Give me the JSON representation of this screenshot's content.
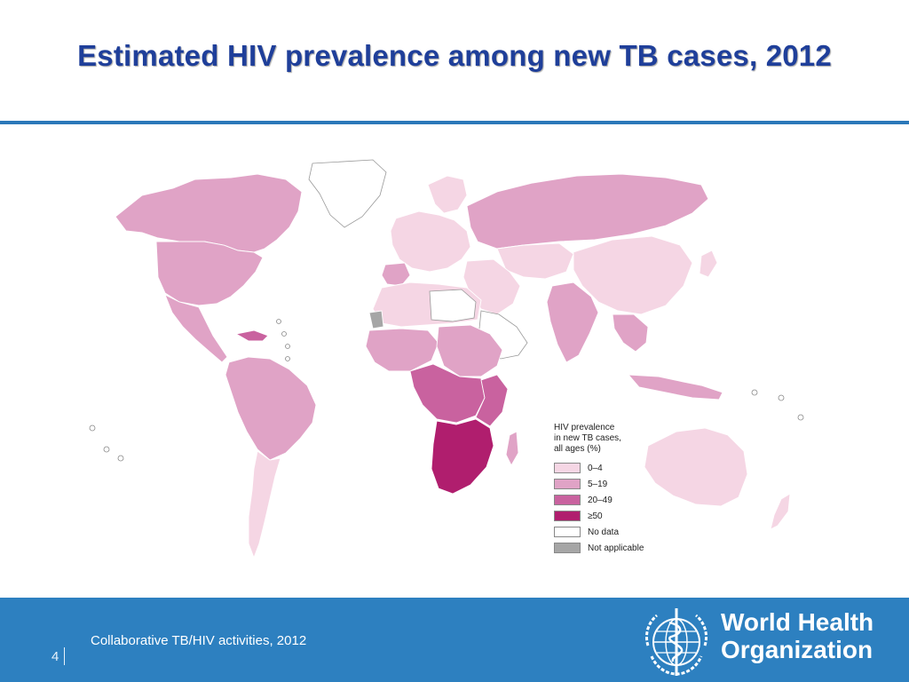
{
  "title": "Estimated HIV prevalence among new TB cases, 2012",
  "legend": {
    "title_lines": [
      "HIV prevalence",
      "in new TB cases,",
      "all ages (%)"
    ],
    "items": [
      {
        "label": "0–4",
        "color": "#f5d6e4"
      },
      {
        "label": "5–19",
        "color": "#e0a3c6"
      },
      {
        "label": "20–49",
        "color": "#c9629f"
      },
      {
        "label": "≥50",
        "color": "#b01e6e"
      },
      {
        "label": "No data",
        "color": "#ffffff"
      },
      {
        "label": "Not applicable",
        "color": "#a6a6a6"
      }
    ]
  },
  "footer": {
    "slide_number": "4",
    "text": "Collaborative TB/HIV activities, 2012",
    "org_line1": "World Health",
    "org_line2": "Organization"
  },
  "colors": {
    "title": "#1f3f9a",
    "rule": "#2a78b9",
    "footer_bg": "#2d80c0"
  }
}
